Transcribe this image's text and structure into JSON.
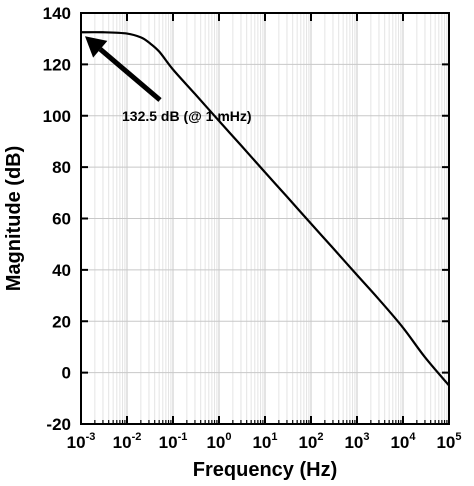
{
  "chart_data": {
    "type": "line",
    "title": "",
    "xlabel": "Frequency (Hz)",
    "ylabel": "Magnitude (dB)",
    "xscale": "log",
    "xlim": [
      0.001,
      100000
    ],
    "ylim": [
      -20,
      140
    ],
    "grid": true,
    "x_ticks": [
      {
        "base": "10",
        "exp": "-3"
      },
      {
        "base": "10",
        "exp": "-2"
      },
      {
        "base": "10",
        "exp": "-1"
      },
      {
        "base": "10",
        "exp": "0"
      },
      {
        "base": "10",
        "exp": "1"
      },
      {
        "base": "10",
        "exp": "2"
      },
      {
        "base": "10",
        "exp": "3"
      },
      {
        "base": "10",
        "exp": "4"
      },
      {
        "base": "10",
        "exp": "5"
      }
    ],
    "y_ticks": [
      "-20",
      "0",
      "20",
      "40",
      "60",
      "80",
      "100",
      "120",
      "140"
    ],
    "series": [
      {
        "color": "#000000",
        "x": [
          0.001,
          0.003,
          0.01,
          0.02,
          0.03,
          0.05,
          0.1,
          0.3,
          1,
          3,
          10,
          30,
          100,
          300,
          1000,
          3000,
          10000,
          30000,
          100000
        ],
        "y": [
          132.5,
          132.5,
          132.0,
          130.5,
          128.5,
          125.0,
          118.0,
          108.5,
          98.0,
          88.5,
          78.0,
          68.5,
          58.0,
          48.5,
          38.0,
          28.5,
          17.5,
          6.0,
          -5.0
        ]
      }
    ],
    "annotations": [
      {
        "text": "132.5 dB (@ 1 mHz)",
        "x": 0.001,
        "y": 132.5
      }
    ]
  }
}
